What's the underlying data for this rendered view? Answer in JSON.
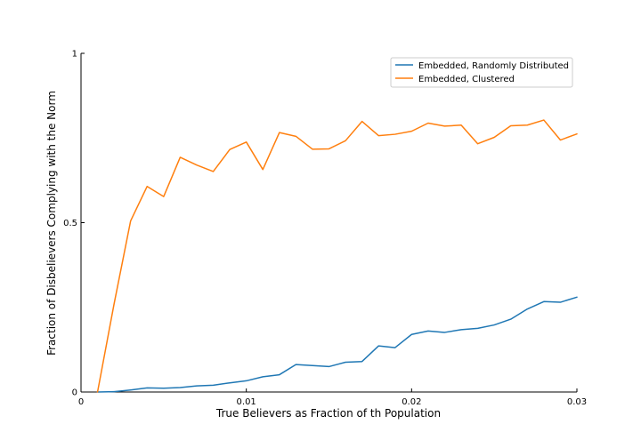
{
  "chart_data": {
    "type": "line",
    "title": "",
    "xlabel": "True Believers as Fraction of th Population",
    "ylabel": "Fraction of Disbelievers Complying with the Norm",
    "xlim": [
      0,
      0.03
    ],
    "ylim": [
      0,
      1
    ],
    "xticks": [
      0,
      0.01,
      0.02,
      0.03
    ],
    "xtick_labels": [
      "0",
      "0.01",
      "0.02",
      "0.03"
    ],
    "yticks": [
      0,
      0.5,
      1
    ],
    "ytick_labels": [
      "0",
      "0.5",
      "1"
    ],
    "grid": false,
    "legend_position": "top-right",
    "x": [
      0.001,
      0.002,
      0.003,
      0.004,
      0.005,
      0.006,
      0.007,
      0.008,
      0.009,
      0.01,
      0.011,
      0.012,
      0.013,
      0.014,
      0.015,
      0.016,
      0.017,
      0.018,
      0.019,
      0.02,
      0.021,
      0.022,
      0.023,
      0.024,
      0.025,
      0.026,
      0.027,
      0.028,
      0.029,
      0.03
    ],
    "series": [
      {
        "name": "Embedded, Randomly Distributed",
        "color": "#1f77b4",
        "values": [
          0.0,
          0.001,
          0.006,
          0.012,
          0.011,
          0.013,
          0.018,
          0.02,
          0.027,
          0.033,
          0.045,
          0.051,
          0.081,
          0.078,
          0.075,
          0.088,
          0.09,
          0.136,
          0.131,
          0.17,
          0.18,
          0.176,
          0.184,
          0.188,
          0.198,
          0.215,
          0.245,
          0.267,
          0.265,
          0.28
        ]
      },
      {
        "name": "Embedded, Clustered",
        "color": "#ff7f0e",
        "values": [
          0.0,
          0.26,
          0.505,
          0.607,
          0.577,
          0.693,
          0.67,
          0.651,
          0.716,
          0.738,
          0.657,
          0.766,
          0.755,
          0.717,
          0.718,
          0.742,
          0.799,
          0.757,
          0.761,
          0.77,
          0.794,
          0.785,
          0.788,
          0.733,
          0.752,
          0.786,
          0.788,
          0.803,
          0.744,
          0.762
        ]
      }
    ]
  }
}
